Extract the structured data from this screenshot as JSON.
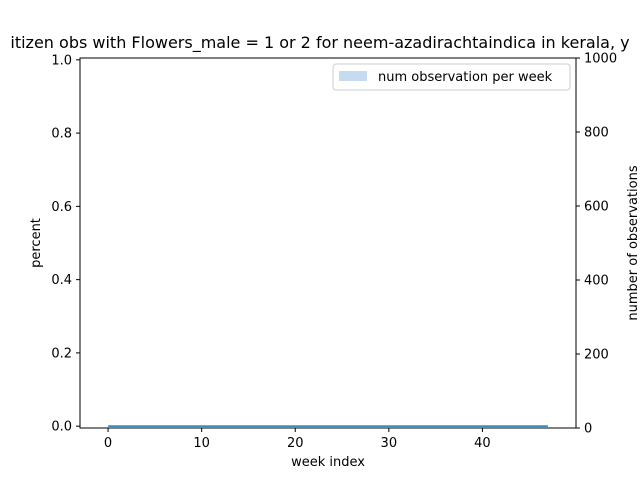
{
  "chart_data": {
    "type": "line",
    "title": "itizen obs with Flowers_male = 1 or 2 for neem-azadirachtaindica in kerala, y",
    "xlabel": "week index",
    "ylabel": "percent",
    "ylabel_right": "number of observations",
    "xlim": [
      -3,
      50
    ],
    "ylim": [
      -0.005,
      1.005
    ],
    "ylim_right": [
      0,
      1000
    ],
    "x_ticks": [
      0,
      10,
      20,
      30,
      40
    ],
    "y_ticks": [
      0.0,
      0.2,
      0.4,
      0.6,
      0.8,
      1.0
    ],
    "y_ticks_right": [
      0,
      200,
      400,
      600,
      800,
      1000
    ],
    "y_tick_labels": [
      "0.0",
      "0.2",
      "0.4",
      "0.6",
      "0.8",
      "1.0"
    ],
    "legend": {
      "entries": [
        "num observation per week"
      ],
      "placement": "top-right"
    },
    "grid": false,
    "series": [
      {
        "role": "percent",
        "axis": "left",
        "color": "#1f77b4",
        "x": [
          0,
          1,
          2,
          3,
          4,
          5,
          6,
          7,
          8,
          9,
          10,
          11,
          12,
          13,
          14,
          15,
          16,
          17,
          18,
          19,
          20,
          21,
          22,
          23,
          24,
          25,
          26,
          27,
          28,
          29,
          30,
          31,
          32,
          33,
          34,
          35,
          36,
          37,
          38,
          39,
          40,
          41,
          42,
          43,
          44,
          45,
          46,
          47
        ],
        "y": [
          0,
          0,
          0,
          0,
          0,
          0,
          0,
          0,
          0,
          0,
          0,
          0,
          0,
          0,
          0,
          0,
          0,
          0,
          0,
          0,
          0,
          0,
          0,
          0,
          0,
          0,
          0,
          0,
          0,
          0,
          0,
          0,
          0,
          0,
          0,
          0,
          0,
          0,
          0,
          0,
          0,
          0,
          0,
          0,
          0,
          0,
          0,
          0
        ]
      },
      {
        "role": "num observation per week",
        "axis": "right",
        "type": "bar",
        "color": "#c6dbef",
        "x": [
          0,
          1,
          2,
          3,
          4,
          5,
          6,
          7,
          8,
          9,
          10,
          11,
          12,
          13,
          14,
          15,
          16,
          17,
          18,
          19,
          20,
          21,
          22,
          23,
          24,
          25,
          26,
          27,
          28,
          29,
          30,
          31,
          32,
          33,
          34,
          35,
          36,
          37,
          38,
          39,
          40,
          41,
          42,
          43,
          44,
          45,
          46,
          47
        ],
        "y": [
          0,
          0,
          0,
          0,
          0,
          0,
          0,
          0,
          0,
          0,
          0,
          0,
          0,
          0,
          0,
          0,
          0,
          0,
          0,
          0,
          0,
          0,
          0,
          0,
          0,
          0,
          0,
          0,
          0,
          0,
          0,
          0,
          0,
          0,
          0,
          0,
          0,
          0,
          0,
          0,
          0,
          0,
          0,
          0,
          0,
          0,
          0,
          0
        ]
      }
    ]
  }
}
